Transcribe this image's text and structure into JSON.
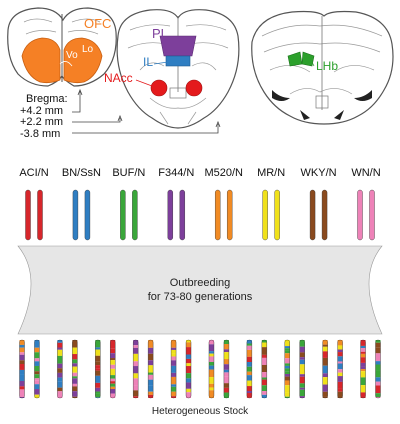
{
  "brain": {
    "regions": {
      "ofc": "OFC",
      "vo": "Vo",
      "lo": "Lo",
      "pl": "PL",
      "il": "IL",
      "nacc": "NAcc",
      "lhb": "LHb"
    },
    "bregma": {
      "title": "Bregma:",
      "levels": [
        "+4.2 mm",
        "+2.2 mm",
        "-3.8 mm"
      ]
    }
  },
  "strains": [
    {
      "label": "ACI/N",
      "color": "#d7262b"
    },
    {
      "label": "BN/SsN",
      "color": "#2f7ec2"
    },
    {
      "label": "BUF/N",
      "color": "#3aa63a"
    },
    {
      "label": "F344/N",
      "color": "#7d3f9b"
    },
    {
      "label": "M520/N",
      "color": "#f18b24"
    },
    {
      "label": "MR/N",
      "color": "#f0e11a"
    },
    {
      "label": "WKY/N",
      "color": "#8a4a1e"
    },
    {
      "label": "WN/N",
      "color": "#ee82b8"
    }
  ],
  "outbreeding": {
    "line1": "Outbreeding",
    "line2": "for 73-80 generations"
  },
  "stock_label": "Heterogeneous Stock",
  "colors": {
    "ofc": "#f58025",
    "pl": "#7d3f9b",
    "il": "#2f7ec2",
    "nacc": "#e41a1c",
    "lhb": "#2ca02c",
    "arrow_fill": "#e6e6e6"
  }
}
